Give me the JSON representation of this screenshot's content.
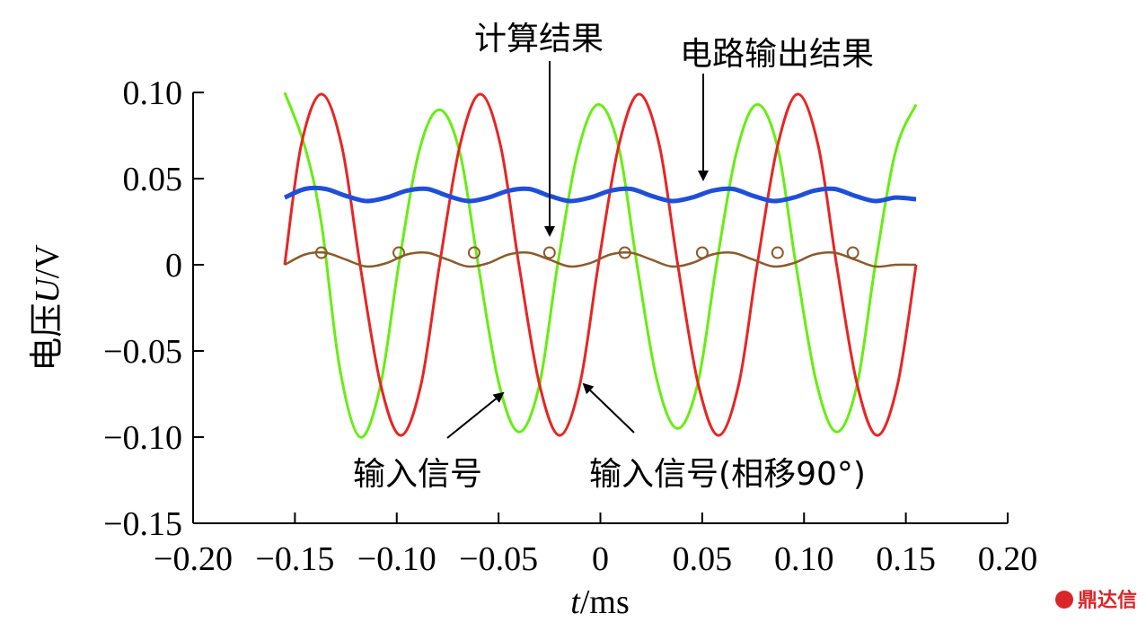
{
  "chart_data": {
    "type": "line",
    "title": "",
    "xlabel_italic": "t",
    "xlabel_unit": "/ms",
    "ylabel_prefix": "电压",
    "ylabel_italic": "U",
    "ylabel_unit": "/V",
    "xlim": [
      -0.2,
      0.2
    ],
    "ylim": [
      -0.15,
      0.1
    ],
    "x_ticks": [
      -0.2,
      -0.15,
      -0.1,
      -0.05,
      0,
      0.05,
      0.1,
      0.15,
      0.2
    ],
    "x_tick_labels": [
      "−0.20",
      "−0.15",
      "−0.10",
      "−0.05",
      "0",
      "0.05",
      "0.10",
      "0.15",
      "0.20"
    ],
    "y_ticks": [
      0.1,
      0.05,
      0,
      -0.05,
      -0.1,
      -0.15
    ],
    "y_tick_labels": [
      "0.10",
      "0.05",
      "0",
      "−0.05",
      "−0.10",
      "−0.15"
    ],
    "grid": false,
    "series": [
      {
        "id": "input",
        "color": "#66ee11",
        "x": [
          -0.155,
          -0.145,
          -0.137,
          -0.128,
          -0.118,
          -0.108,
          -0.099,
          -0.089,
          -0.079,
          -0.069,
          -0.06,
          -0.05,
          -0.04,
          -0.03,
          -0.021,
          -0.011,
          -0.001,
          0.009,
          0.018,
          0.028,
          0.038,
          0.048,
          0.057,
          0.067,
          0.077,
          0.087,
          0.096,
          0.106,
          0.116,
          0.126,
          0.135,
          0.145,
          0.155
        ],
        "y": [
          0.1,
          0.068,
          0.024,
          -0.06,
          -0.1,
          -0.07,
          0.0,
          0.066,
          0.09,
          0.065,
          0.0,
          -0.068,
          -0.097,
          -0.07,
          0.0,
          0.066,
          0.093,
          0.068,
          0.0,
          -0.068,
          -0.095,
          -0.068,
          0.0,
          0.066,
          0.093,
          0.068,
          0.0,
          -0.068,
          -0.097,
          -0.07,
          0.0,
          0.066,
          0.093
        ]
      },
      {
        "id": "input-shifted",
        "color": "#e82424",
        "x": [
          -0.155,
          -0.147,
          -0.137,
          -0.127,
          -0.118,
          -0.108,
          -0.098,
          -0.088,
          -0.079,
          -0.069,
          -0.059,
          -0.049,
          -0.04,
          -0.03,
          -0.02,
          -0.01,
          -0.001,
          0.009,
          0.019,
          0.029,
          0.038,
          0.048,
          0.058,
          0.068,
          0.077,
          0.087,
          0.097,
          0.107,
          0.116,
          0.126,
          0.136,
          0.146,
          0.155
        ],
        "y": [
          0.0,
          0.069,
          0.099,
          0.069,
          0.0,
          -0.069,
          -0.099,
          -0.069,
          0.0,
          0.069,
          0.099,
          0.069,
          0.0,
          -0.069,
          -0.099,
          -0.069,
          0.0,
          0.069,
          0.099,
          0.069,
          0.0,
          -0.069,
          -0.099,
          -0.069,
          0.0,
          0.069,
          0.099,
          0.069,
          0.0,
          -0.069,
          -0.099,
          -0.069,
          0.0
        ]
      },
      {
        "id": "circuit-output",
        "color": "#1f4fd8",
        "x": [
          -0.155,
          -0.145,
          -0.135,
          -0.125,
          -0.115,
          -0.105,
          -0.095,
          -0.085,
          -0.075,
          -0.065,
          -0.055,
          -0.045,
          -0.035,
          -0.025,
          -0.015,
          -0.005,
          0.005,
          0.015,
          0.025,
          0.035,
          0.045,
          0.055,
          0.065,
          0.075,
          0.085,
          0.095,
          0.105,
          0.115,
          0.125,
          0.135,
          0.145,
          0.155
        ],
        "y": [
          0.039,
          0.044,
          0.044,
          0.04,
          0.037,
          0.039,
          0.043,
          0.044,
          0.04,
          0.037,
          0.039,
          0.043,
          0.044,
          0.04,
          0.037,
          0.039,
          0.043,
          0.044,
          0.04,
          0.037,
          0.039,
          0.043,
          0.044,
          0.04,
          0.037,
          0.039,
          0.043,
          0.044,
          0.04,
          0.037,
          0.039,
          0.038
        ]
      },
      {
        "id": "computed",
        "color": "#8b5a2b",
        "x": [
          -0.155,
          -0.145,
          -0.135,
          -0.125,
          -0.115,
          -0.105,
          -0.095,
          -0.085,
          -0.075,
          -0.065,
          -0.055,
          -0.045,
          -0.035,
          -0.025,
          -0.015,
          -0.005,
          0.005,
          0.015,
          0.025,
          0.035,
          0.045,
          0.055,
          0.065,
          0.075,
          0.085,
          0.095,
          0.105,
          0.115,
          0.125,
          0.135,
          0.145,
          0.155
        ],
        "y": [
          0.0,
          0.006,
          0.007,
          0.003,
          -0.001,
          0.001,
          0.006,
          0.007,
          0.003,
          -0.001,
          0.001,
          0.006,
          0.007,
          0.003,
          -0.001,
          0.001,
          0.006,
          0.007,
          0.003,
          -0.001,
          0.001,
          0.006,
          0.007,
          0.003,
          -0.001,
          0.001,
          0.006,
          0.007,
          0.003,
          -0.001,
          0.0,
          0.0
        ]
      }
    ],
    "markers": {
      "series": "computed",
      "x": [
        -0.137,
        -0.099,
        -0.062,
        -0.025,
        0.012,
        0.05,
        0.087,
        0.124
      ],
      "y": [
        0.007,
        0.007,
        0.007,
        0.007,
        0.007,
        0.007,
        0.007,
        0.007
      ]
    },
    "annotations": [
      {
        "text": "计算结果",
        "target": [
          -0.025,
          0.007
        ]
      },
      {
        "text": "电路输出结果",
        "target": [
          0.05,
          0.042
        ]
      },
      {
        "text": "输入信号",
        "target": [
          -0.048,
          -0.072
        ]
      },
      {
        "text": "输入信号(相移90°)",
        "target": [
          -0.01,
          -0.068
        ]
      }
    ]
  },
  "watermark": "鼎达信"
}
